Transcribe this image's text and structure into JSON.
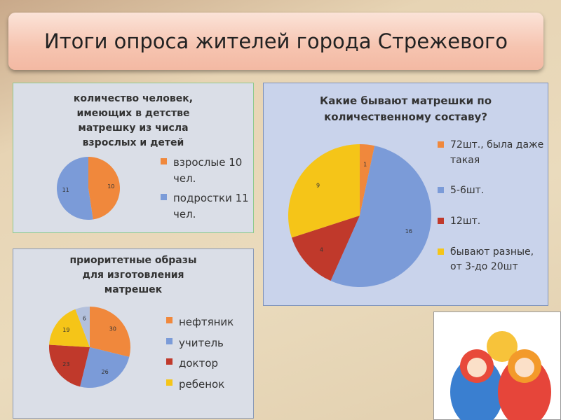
{
  "title": "Итоги опроса жителей города Стрежевого",
  "chart_data": [
    {
      "type": "pie",
      "title": "количество человек, имеющих в детстве матрешку из числа взрослых и детей",
      "categories": [
        "взрослые 10 чел.",
        "подростки 11 чел."
      ],
      "values": [
        10,
        11
      ],
      "colors": [
        "#f0883c",
        "#7b9bd8"
      ]
    },
    {
      "type": "pie",
      "title": "Какие бывают матрешки по количественному составу?",
      "categories": [
        "72шт., была даже такая",
        "5-6шт.",
        "12шт.",
        "бывают разные, от 3-до 20шт"
      ],
      "values": [
        1,
        16,
        4,
        9
      ],
      "colors": [
        "#f0883c",
        "#7b9bd8",
        "#c0392b",
        "#f5c518"
      ]
    },
    {
      "type": "pie",
      "title": "приоритетные образы для изготовления матрешек",
      "categories": [
        "нефтяник",
        "учитель",
        "доктор",
        "ребенок",
        null
      ],
      "values": [
        30,
        26,
        23,
        19,
        6
      ],
      "colors": [
        "#f0883c",
        "#7b9bd8",
        "#c0392b",
        "#f5c518",
        "#b3c0dc"
      ]
    }
  ]
}
